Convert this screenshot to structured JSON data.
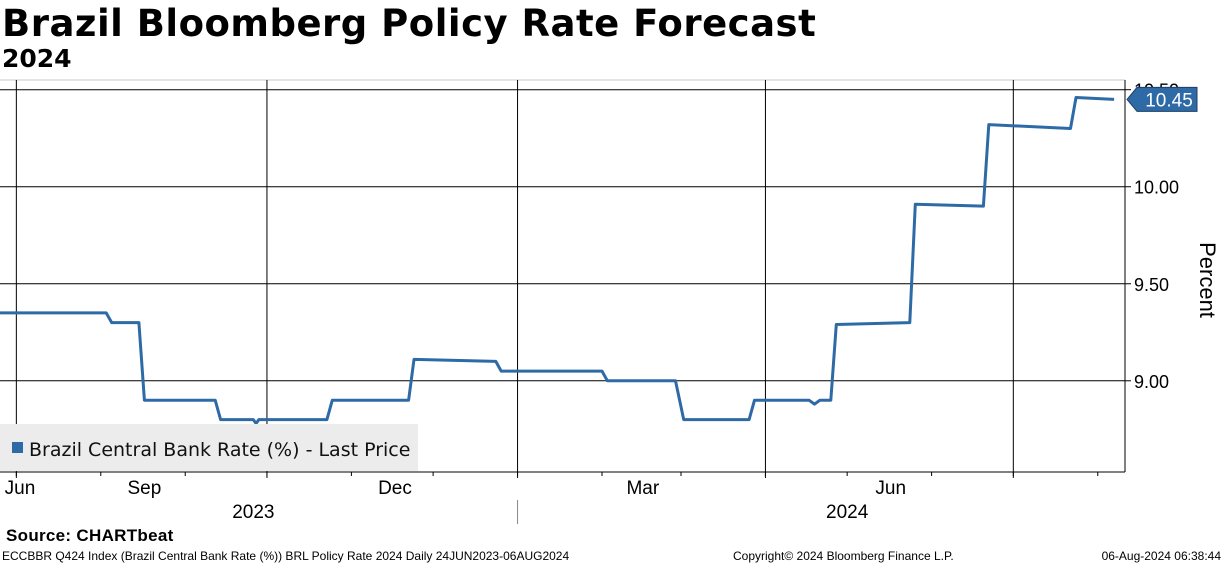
{
  "title": "Brazil Bloomberg Policy Rate Forecast",
  "subtitle": "2024",
  "source": "Source: CHARTbeat",
  "footer": {
    "ticker": "ECCBBR Q424 Index (Brazil Central Bank Rate (%)) BRL Policy Rate 2024  Daily 24JUN2023-06AUG2024",
    "copyright": "Copyright© 2024 Bloomberg Finance L.P.",
    "timestamp": "06-Aug-2024 06:38:44"
  },
  "chart_data": {
    "type": "line",
    "title": "Brazil Bloomberg Policy Rate Forecast",
    "subtitle": "2024",
    "ylabel": "Percent",
    "ylim": [
      8.53,
      10.55
    ],
    "xlim": [
      "2023-06-24",
      "2024-08-10"
    ],
    "y_ticks": [
      9.0,
      9.5,
      10.0,
      10.5
    ],
    "y_tick_labels": [
      "9.00",
      "9.50",
      "10.00",
      "10.50"
    ],
    "x_ticks": [
      {
        "date": "2023-06-30",
        "label": "Jun"
      },
      {
        "date": "2023-09-30",
        "label": "Sep"
      },
      {
        "date": "2023-12-31",
        "label": "Dec"
      },
      {
        "date": "2024-03-31",
        "label": "Mar"
      },
      {
        "date": "2024-06-30",
        "label": "Jun"
      }
    ],
    "year_labels": [
      {
        "label": "2023"
      },
      {
        "label": "2024"
      }
    ],
    "grid": true,
    "legend_position": "bottom-left",
    "last_value_label": "10.45",
    "series": [
      {
        "name": "Brazil Central Bank Rate (%) - Last Price",
        "color": "#2e6aa6",
        "points": [
          [
            "2023-06-24",
            9.35
          ],
          [
            "2023-08-02",
            9.35
          ],
          [
            "2023-08-04",
            9.3
          ],
          [
            "2023-08-14",
            9.3
          ],
          [
            "2023-08-16",
            8.9
          ],
          [
            "2023-09-11",
            8.9
          ],
          [
            "2023-09-13",
            8.8
          ],
          [
            "2023-09-25",
            8.8
          ],
          [
            "2023-09-26",
            8.78
          ],
          [
            "2023-09-27",
            8.8
          ],
          [
            "2023-10-22",
            8.8
          ],
          [
            "2023-10-24",
            8.9
          ],
          [
            "2023-11-21",
            8.9
          ],
          [
            "2023-11-23",
            9.11
          ],
          [
            "2023-12-23",
            9.1
          ],
          [
            "2023-12-25",
            9.05
          ],
          [
            "2024-01-31",
            9.05
          ],
          [
            "2024-02-02",
            9.0
          ],
          [
            "2024-02-27",
            9.0
          ],
          [
            "2024-03-01",
            8.8
          ],
          [
            "2024-03-25",
            8.8
          ],
          [
            "2024-03-27",
            8.9
          ],
          [
            "2024-04-16",
            8.9
          ],
          [
            "2024-04-18",
            8.88
          ],
          [
            "2024-04-20",
            8.9
          ],
          [
            "2024-04-24",
            8.9
          ],
          [
            "2024-04-26",
            9.29
          ],
          [
            "2024-05-23",
            9.3
          ],
          [
            "2024-05-25",
            9.91
          ],
          [
            "2024-06-19",
            9.9
          ],
          [
            "2024-06-21",
            10.32
          ],
          [
            "2024-07-21",
            10.3
          ],
          [
            "2024-07-23",
            10.46
          ],
          [
            "2024-08-06",
            10.45
          ]
        ]
      }
    ]
  }
}
